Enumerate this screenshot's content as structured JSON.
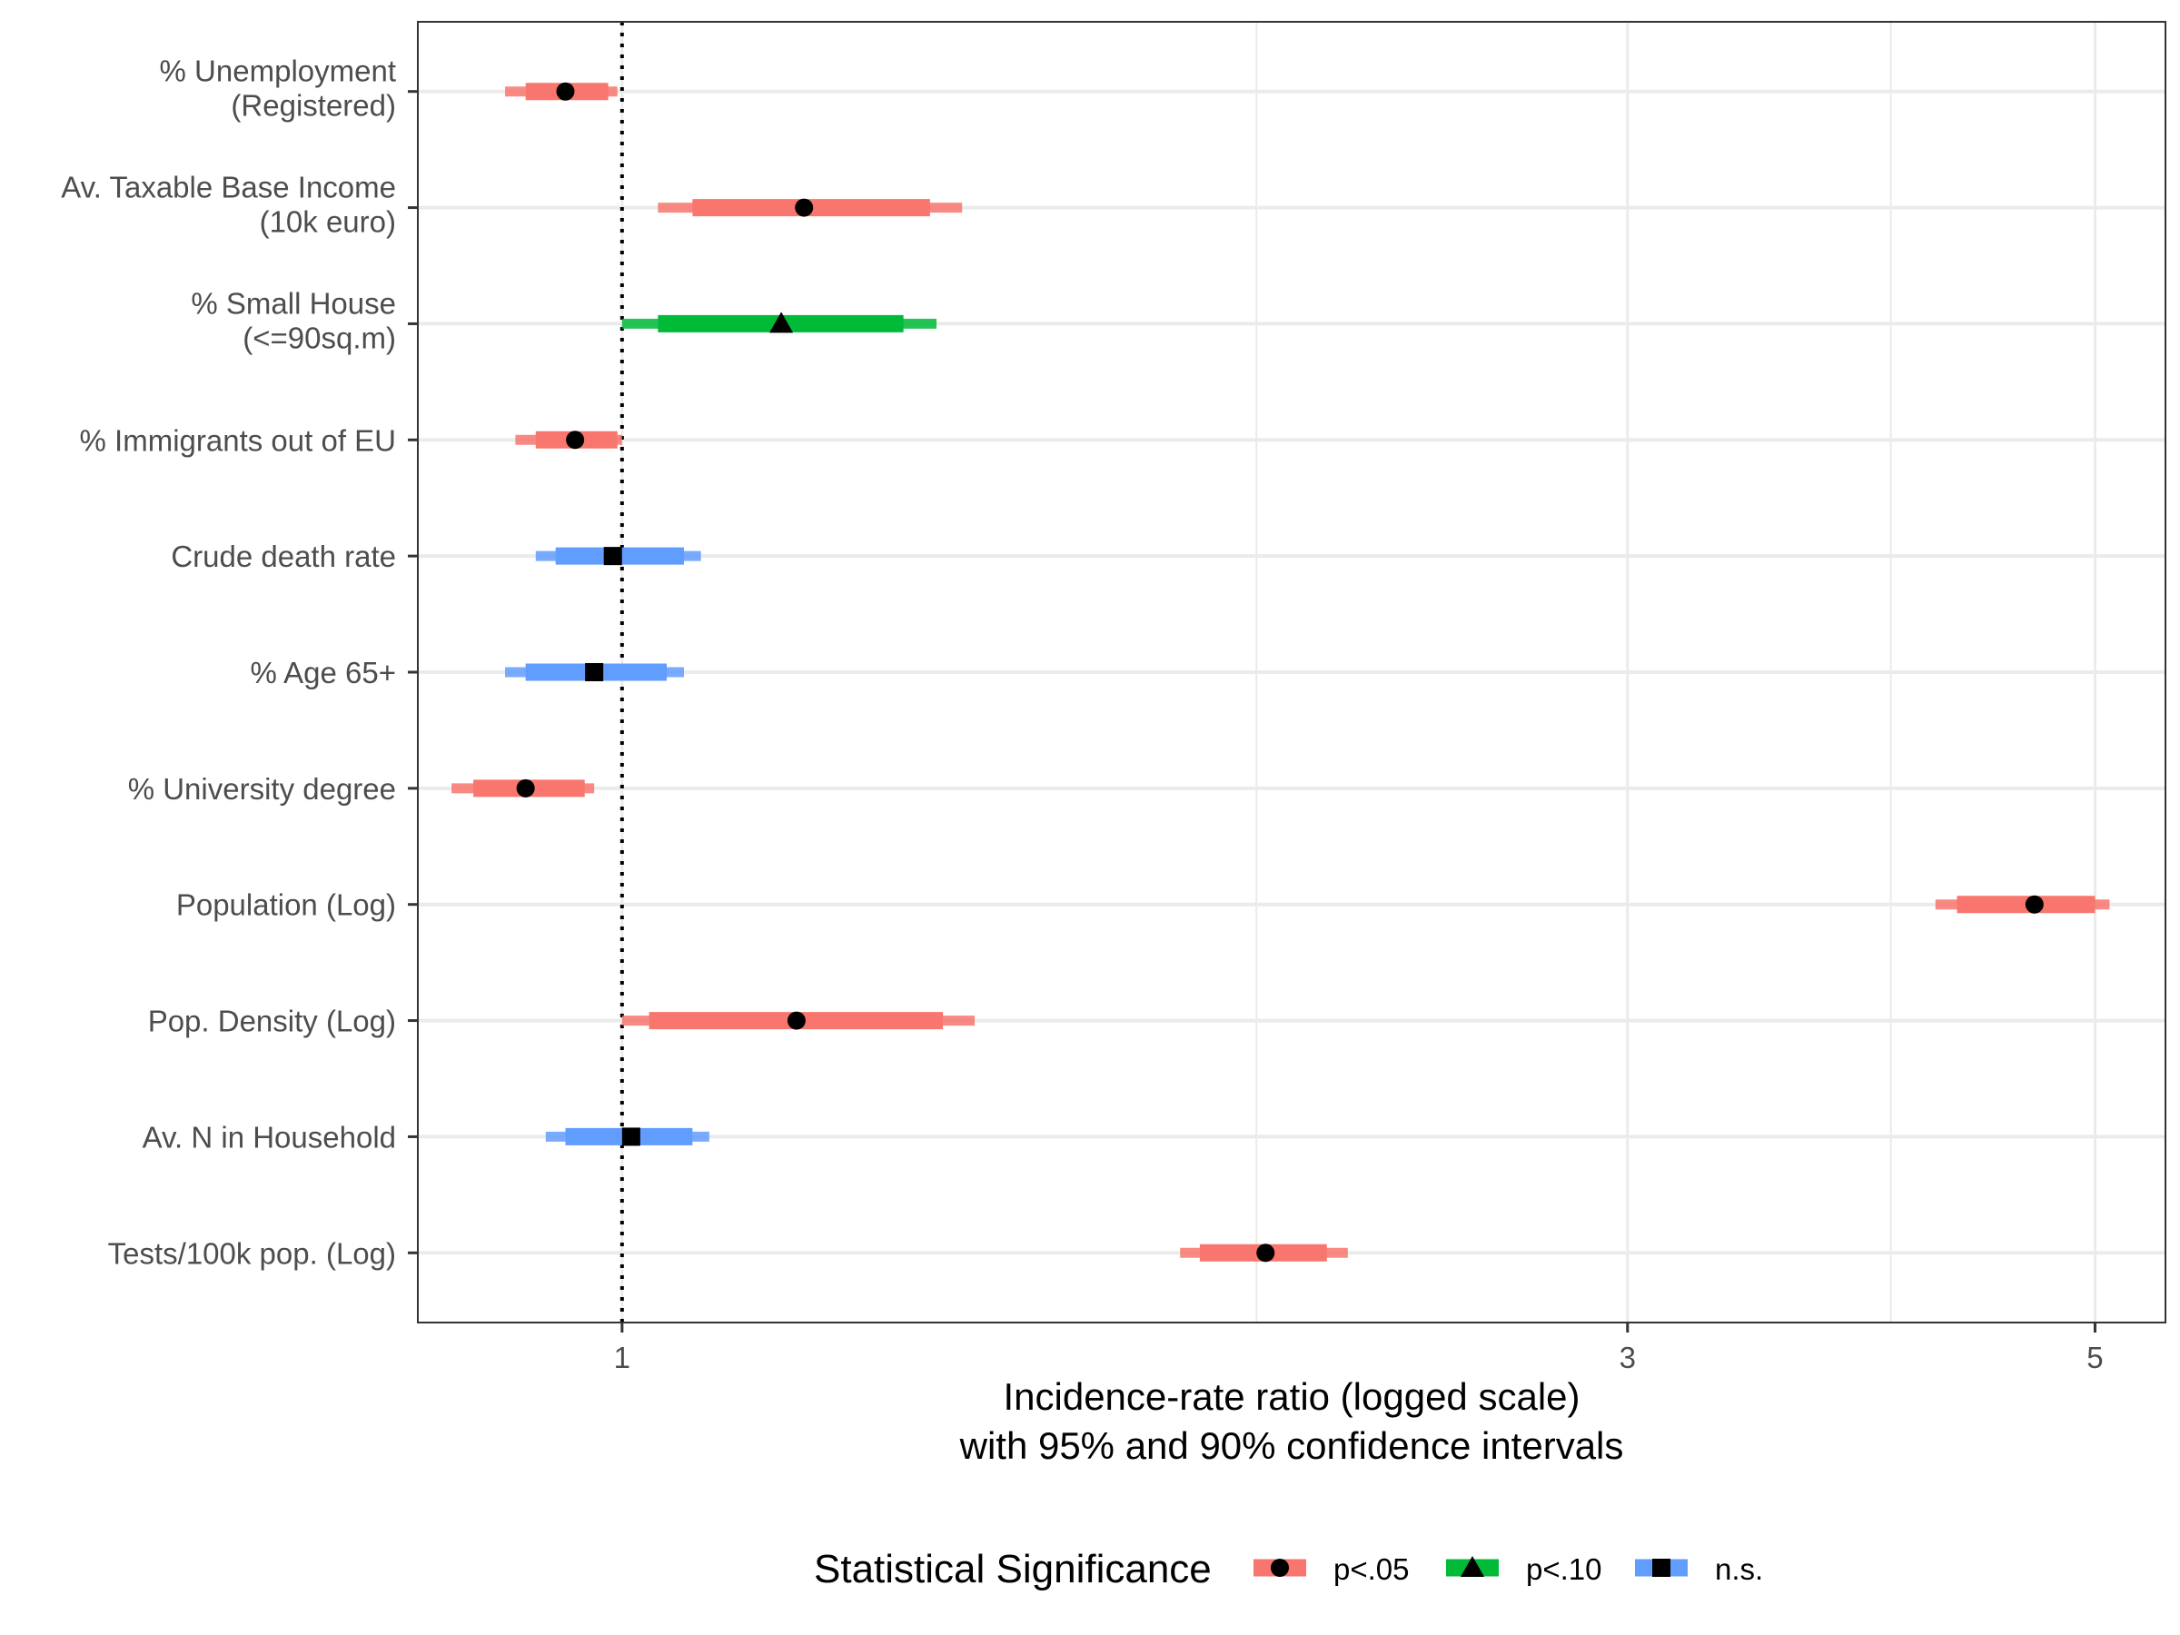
{
  "chart_data": {
    "type": "forest",
    "title": "",
    "xlabel_line1": "Incidence-rate ratio (logged scale)",
    "xlabel_line2": "with 95% and 90% confidence intervals",
    "ylabel": "",
    "x_scale": "log",
    "xlim": [
      0.8,
      5.4
    ],
    "x_ticks": [
      1,
      3,
      5
    ],
    "x_tick_labels": [
      "1",
      "3",
      "5"
    ],
    "x_minor_gridlines": [
      2,
      4
    ],
    "reference_line": 1,
    "grid": true,
    "legend": {
      "title": "Statistical Significance",
      "position": "bottom",
      "entries": [
        {
          "label": "p<.05",
          "color": "#F8766D",
          "shape": "circle"
        },
        {
          "label": "p<.10",
          "color": "#00BA38",
          "shape": "triangle"
        },
        {
          "label": "n.s.",
          "color": "#619CFF",
          "shape": "square"
        }
      ]
    },
    "rows": [
      {
        "label_line1": "% Unemployment",
        "label_line2": "(Registered)",
        "estimate": 0.94,
        "ci90": [
          0.9,
          0.985
        ],
        "ci95": [
          0.88,
          0.995
        ],
        "sig": "p<.05"
      },
      {
        "label_line1": "Av. Taxable Base Income",
        "label_line2": "(10k euro)",
        "estimate": 1.22,
        "ci90": [
          1.08,
          1.4
        ],
        "ci95": [
          1.04,
          1.45
        ],
        "sig": "p<.05"
      },
      {
        "label_line1": "% Small House",
        "label_line2": "(<=90sq.m)",
        "estimate": 1.19,
        "ci90": [
          1.04,
          1.36
        ],
        "ci95": [
          1.0,
          1.41
        ],
        "sig": "p<.10"
      },
      {
        "label_line1": "% Immigrants out of EU",
        "label_line2": "",
        "estimate": 0.95,
        "ci90": [
          0.91,
          0.995
        ],
        "ci95": [
          0.89,
          1.0
        ],
        "sig": "p<.05"
      },
      {
        "label_line1": "Crude death rate",
        "label_line2": "",
        "estimate": 0.99,
        "ci90": [
          0.93,
          1.07
        ],
        "ci95": [
          0.91,
          1.09
        ],
        "sig": "n.s."
      },
      {
        "label_line1": "% Age 65+",
        "label_line2": "",
        "estimate": 0.97,
        "ci90": [
          0.9,
          1.05
        ],
        "ci95": [
          0.88,
          1.07
        ],
        "sig": "n.s."
      },
      {
        "label_line1": "% University degree",
        "label_line2": "",
        "estimate": 0.9,
        "ci90": [
          0.85,
          0.96
        ],
        "ci95": [
          0.83,
          0.97
        ],
        "sig": "p<.05"
      },
      {
        "label_line1": "Population (Log)",
        "label_line2": "",
        "estimate": 4.68,
        "ci90": [
          4.3,
          5.0
        ],
        "ci95": [
          4.2,
          5.08
        ],
        "sig": "p<.05"
      },
      {
        "label_line1": "Pop. Density (Log)",
        "label_line2": "",
        "estimate": 1.21,
        "ci90": [
          1.03,
          1.42
        ],
        "ci95": [
          1.0,
          1.47
        ],
        "sig": "p<.05"
      },
      {
        "label_line1": "Av. N in Household",
        "label_line2": "",
        "estimate": 1.01,
        "ci90": [
          0.94,
          1.08
        ],
        "ci95": [
          0.92,
          1.1
        ],
        "sig": "n.s."
      },
      {
        "label_line1": "Tests/100k pop. (Log)",
        "label_line2": "",
        "estimate": 2.02,
        "ci90": [
          1.88,
          2.16
        ],
        "ci95": [
          1.84,
          2.21
        ],
        "sig": "p<.05"
      }
    ]
  }
}
